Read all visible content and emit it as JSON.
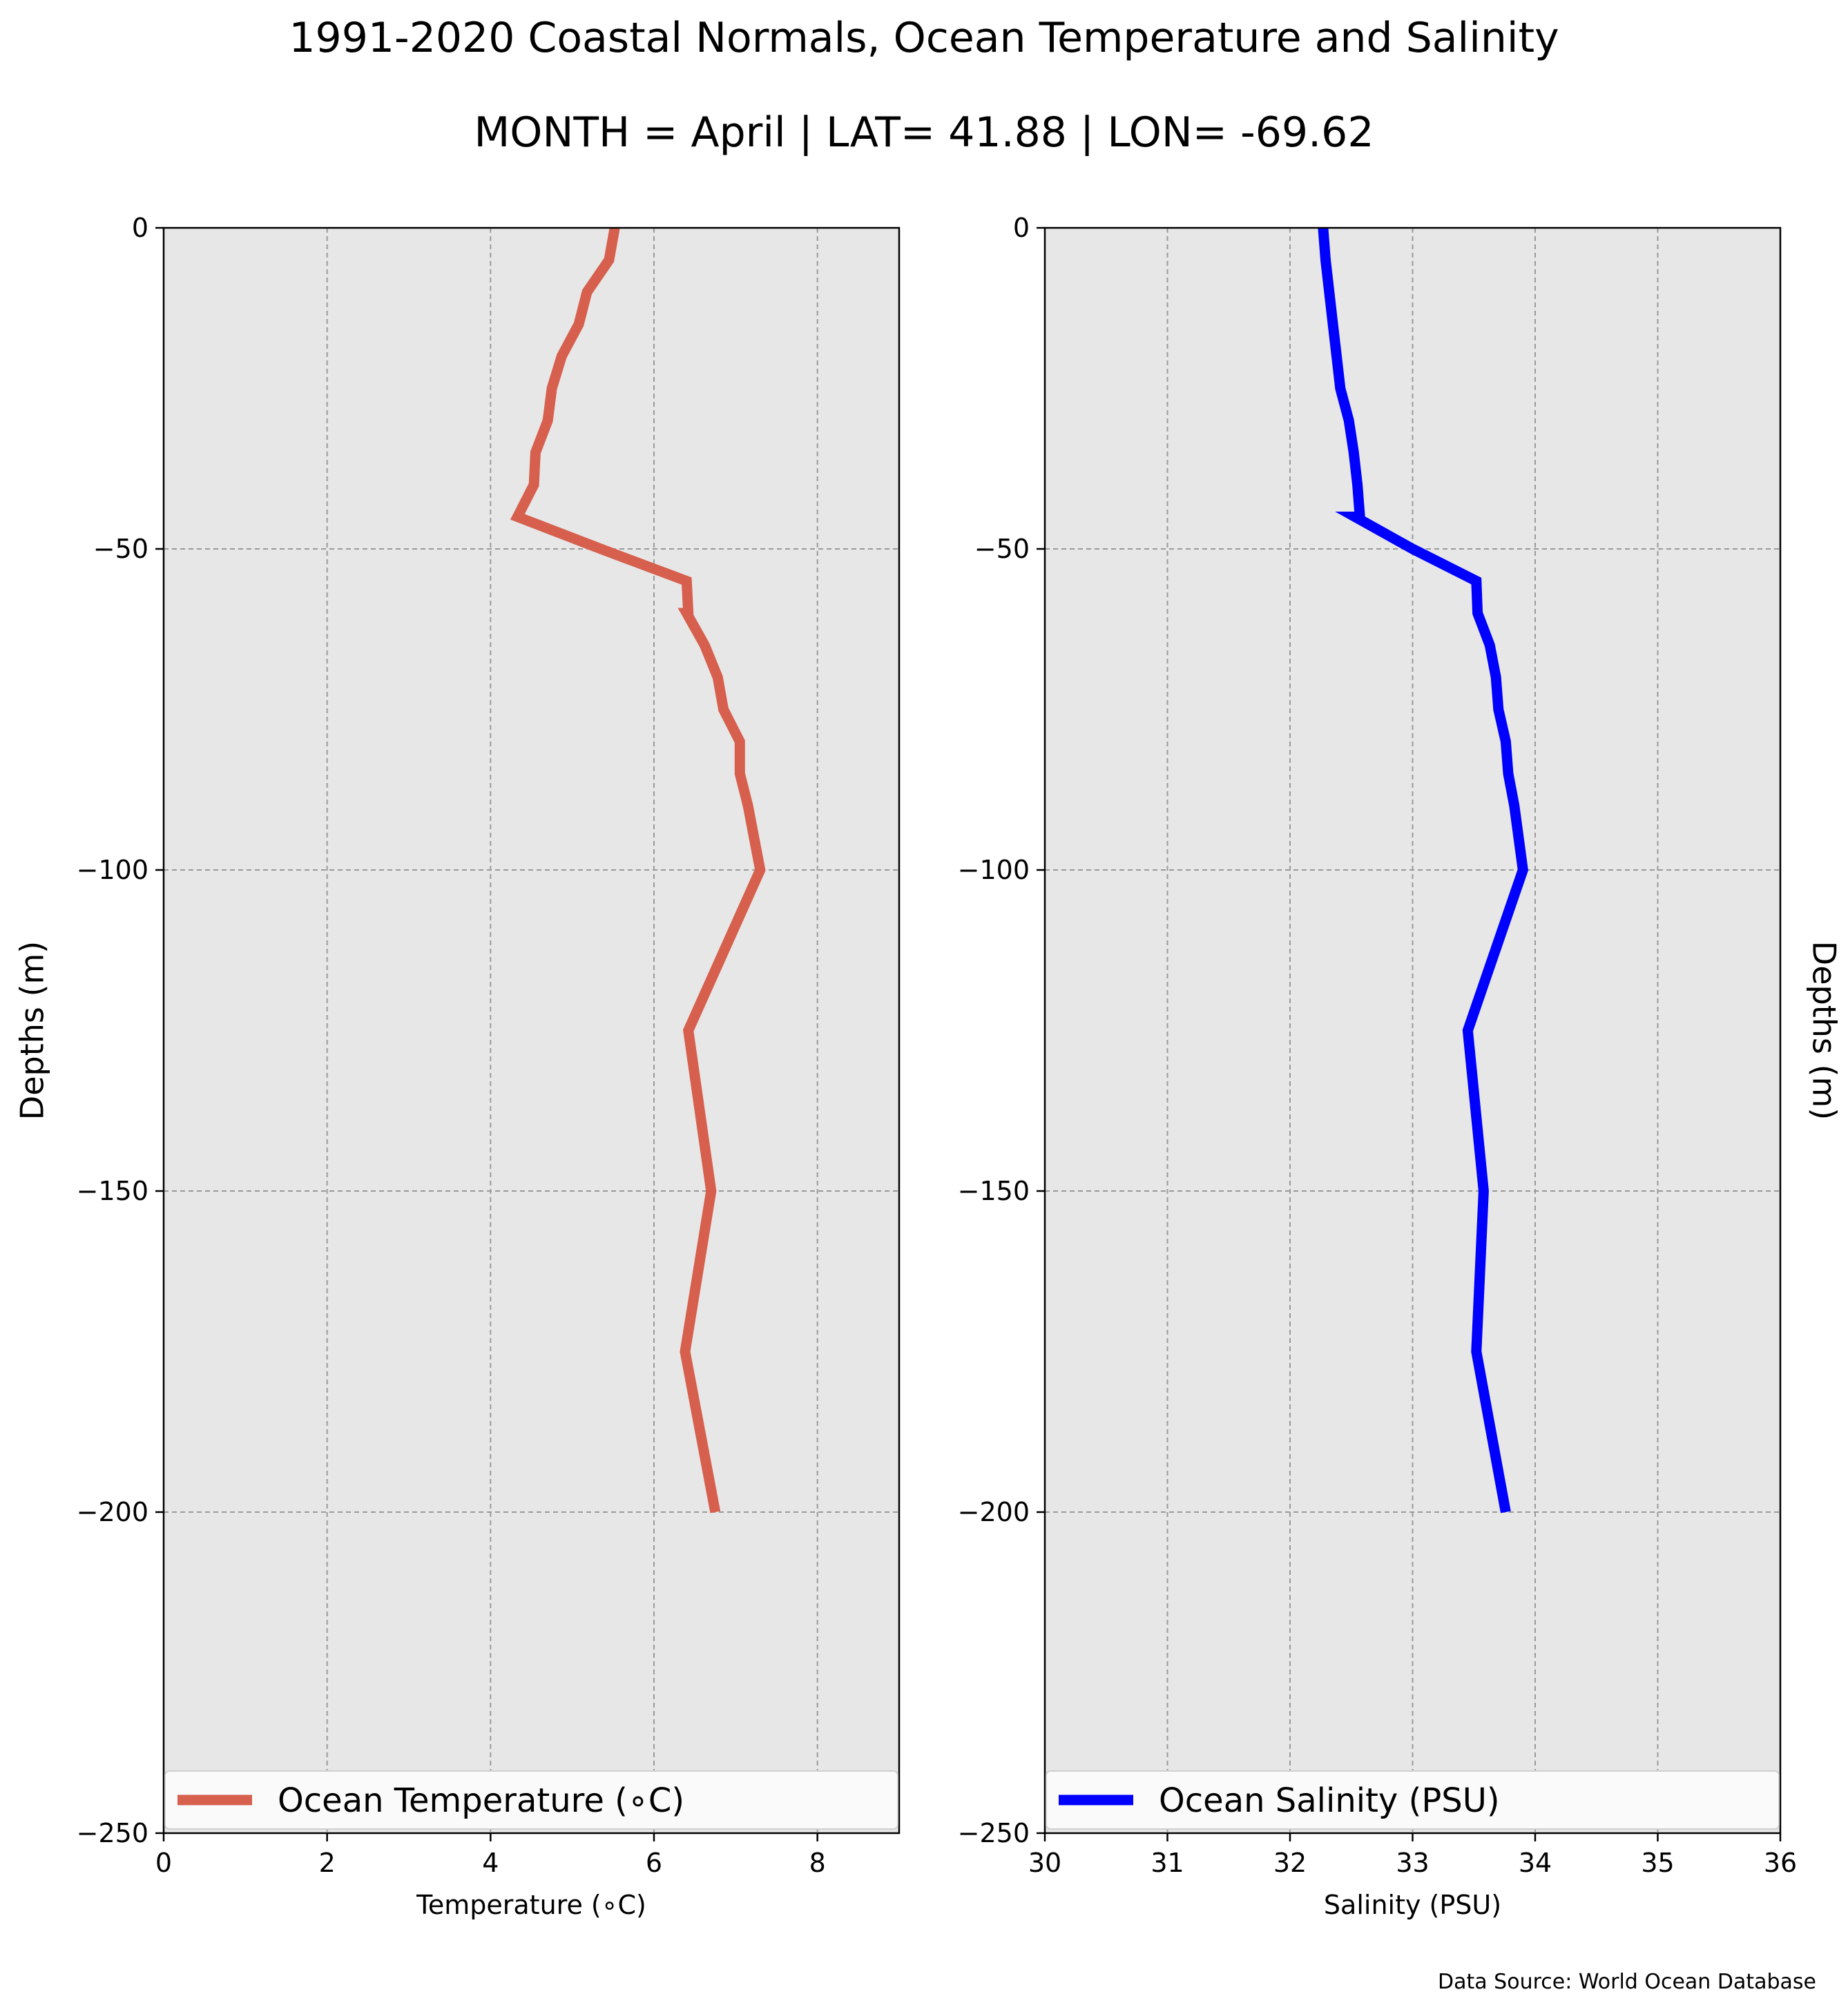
{
  "figure": {
    "title": "1991-2020 Coastal Normals, Ocean Temperature and Salinity",
    "subtitle": "MONTH = April | LAT= 41.88 | LON= -69.62",
    "source": "Data Source: World Ocean Database"
  },
  "chart_data": [
    {
      "type": "line",
      "xlabel": "Temperature (∘C)",
      "ylabel": "Depths (m)",
      "xlim": [
        0,
        9
      ],
      "ylim": [
        -250,
        0
      ],
      "xticks": [
        0,
        2,
        4,
        6,
        8
      ],
      "xtick_labels": [
        "0",
        "2",
        "4",
        "6",
        "8"
      ],
      "yticks": [
        0,
        -50,
        -100,
        -150,
        -200,
        -250
      ],
      "ytick_labels": [
        "0",
        "−50",
        "−100",
        "−150",
        "−200",
        "−250"
      ],
      "grid": true,
      "legend": "lower center",
      "color": "#d65f4d",
      "series": [
        {
          "name": "Ocean Temperature (∘C)",
          "x": [
            5.52,
            5.45,
            5.18,
            5.08,
            4.87,
            4.75,
            4.7,
            4.55,
            4.53,
            4.33,
            5.35,
            6.4,
            6.42,
            6.4,
            6.62,
            6.78,
            6.85,
            7.05,
            7.05,
            7.15,
            7.3,
            6.42,
            6.7,
            6.38,
            6.75
          ],
          "y": [
            0,
            -5,
            -10,
            -15,
            -20,
            -25,
            -30,
            -35,
            -40,
            -45,
            -50,
            -55,
            -60,
            -60,
            -65,
            -70,
            -75,
            -80,
            -85,
            -90,
            -100,
            -125,
            -150,
            -175,
            -200
          ]
        }
      ]
    },
    {
      "type": "line",
      "xlabel": "Salinity (PSU)",
      "ylabel": "Depths (m)",
      "xlim": [
        30,
        36
      ],
      "ylim": [
        -250,
        0
      ],
      "xticks": [
        30,
        31,
        32,
        33,
        34,
        35,
        36
      ],
      "xtick_labels": [
        "30",
        "31",
        "32",
        "33",
        "34",
        "35",
        "36"
      ],
      "yticks": [
        0,
        -50,
        -100,
        -150,
        -200,
        -250
      ],
      "ytick_labels": [
        "0",
        "−50",
        "−100",
        "−150",
        "−200",
        "−250"
      ],
      "grid": true,
      "legend": "lower center",
      "color": "#0000ff",
      "series": [
        {
          "name": "Ocean Salinity (PSU)",
          "x": [
            32.27,
            32.29,
            32.32,
            32.35,
            32.38,
            32.41,
            32.48,
            32.52,
            32.55,
            32.57,
            32.53,
            33.0,
            33.52,
            33.53,
            33.63,
            33.68,
            33.7,
            33.76,
            33.78,
            33.83,
            33.9,
            33.45,
            33.58,
            33.52,
            33.76
          ],
          "y": [
            0,
            -5,
            -10,
            -15,
            -20,
            -25,
            -30,
            -35,
            -40,
            -45,
            -45,
            -50,
            -55,
            -60,
            -65,
            -70,
            -75,
            -80,
            -85,
            -90,
            -100,
            -125,
            -150,
            -175,
            -200
          ]
        }
      ]
    }
  ]
}
